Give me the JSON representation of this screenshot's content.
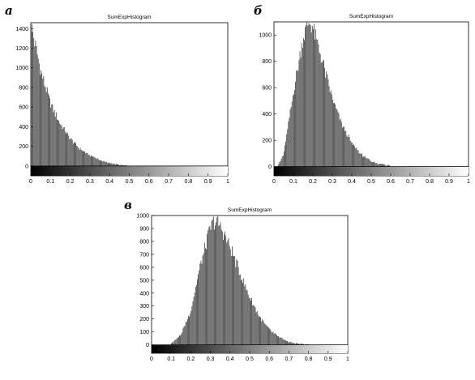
{
  "figure": {
    "panels": [
      {
        "letter": "а",
        "title": "SumExpHistogram"
      },
      {
        "letter": "б",
        "title": "SumExpHistogram"
      },
      {
        "letter": "в",
        "title": "SumExpHistogram"
      }
    ]
  },
  "chart_data": [
    {
      "type": "bar",
      "title": "SumExpHistogram",
      "xlabel": "",
      "ylabel": "",
      "xlim": [
        0,
        1
      ],
      "ylim": [
        -100,
        1460
      ],
      "x_ticks": [
        "0",
        "0.1",
        "0.2",
        "0.3",
        "0.4",
        "0.5",
        "0.6",
        "0.7",
        "0.8",
        "0.9",
        "1"
      ],
      "y_ticks": [
        "0",
        "200",
        "400",
        "600",
        "800",
        "1000",
        "1200",
        "1400"
      ],
      "colorbar": "grayscale gradient from black at 0 to white at 1, drawn along y from -100 to 0",
      "distribution": {
        "shape": "exponential decay",
        "peak_x": 0.0,
        "peak_count": 1460,
        "tail_end_x": 0.5
      },
      "x": [
        0.0,
        0.05,
        0.1,
        0.15,
        0.2,
        0.25,
        0.3,
        0.35,
        0.4,
        0.45,
        0.5
      ],
      "values": [
        1460,
        980,
        640,
        430,
        280,
        175,
        110,
        62,
        30,
        12,
        3
      ]
    },
    {
      "type": "bar",
      "title": "SumExpHistogram",
      "xlabel": "",
      "ylabel": "",
      "xlim": [
        0,
        1
      ],
      "ylim": [
        -70,
        1100
      ],
      "x_ticks": [
        "0",
        "0.1",
        "0.2",
        "0.3",
        "0.4",
        "0.5",
        "0.6",
        "0.7",
        "0.8",
        "0.9",
        "1"
      ],
      "y_ticks": [
        "0",
        "200",
        "400",
        "600",
        "800",
        "1000"
      ],
      "colorbar": "grayscale gradient from black at 0 to white at 1, drawn along y from -70 to 0",
      "distribution": {
        "shape": "right-skewed unimodal",
        "peak_x": 0.18,
        "peak_count": 1100,
        "tail_end_x": 0.62
      },
      "x": [
        0.02,
        0.05,
        0.1,
        0.15,
        0.18,
        0.2,
        0.25,
        0.3,
        0.35,
        0.4,
        0.45,
        0.5,
        0.55,
        0.6
      ],
      "values": [
        5,
        90,
        560,
        980,
        1100,
        1060,
        800,
        520,
        320,
        180,
        90,
        42,
        18,
        6
      ]
    },
    {
      "type": "bar",
      "title": "SumExpHistogram",
      "xlabel": "",
      "ylabel": "",
      "xlim": [
        0,
        1
      ],
      "ylim": [
        -65,
        1000
      ],
      "x_ticks": [
        "0",
        "0.1",
        "0.2",
        "0.3",
        "0.4",
        "0.5",
        "0.6",
        "0.7",
        "0.8",
        "0.9",
        "1"
      ],
      "y_ticks": [
        "0",
        "100",
        "200",
        "300",
        "400",
        "500",
        "600",
        "700",
        "800",
        "900",
        "1000"
      ],
      "colorbar": "grayscale gradient from black at 0 to white at 1, drawn along y from -65 to 0",
      "distribution": {
        "shape": "slightly right-skewed unimodal",
        "peak_x": 0.32,
        "peak_count": 960,
        "tail_end_x": 0.8
      },
      "x": [
        0.1,
        0.15,
        0.2,
        0.25,
        0.3,
        0.32,
        0.35,
        0.4,
        0.45,
        0.5,
        0.55,
        0.6,
        0.65,
        0.7,
        0.75,
        0.8
      ],
      "values": [
        8,
        80,
        260,
        620,
        900,
        960,
        920,
        760,
        560,
        370,
        220,
        120,
        60,
        24,
        8,
        2
      ]
    }
  ]
}
